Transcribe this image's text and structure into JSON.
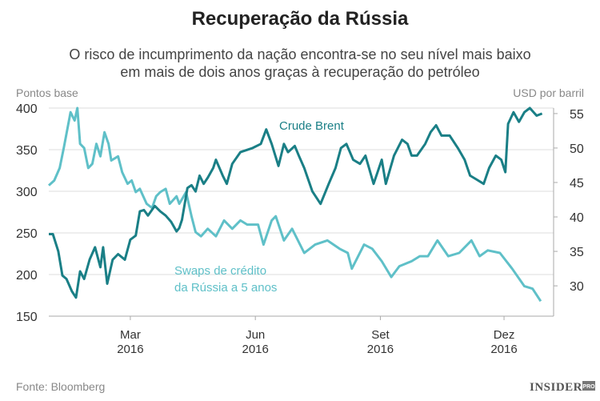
{
  "header": {
    "title": "Recuperação da Rússia",
    "subtitle_lines": [
      "O risco de incumprimento da nação encontra-se no seu nível mais baixo",
      "em mais de dois anos graças à recuperação do petróleo"
    ]
  },
  "footer": {
    "source": "Fonte: Bloomberg",
    "logo": "INSIDER PRO"
  },
  "colors": {
    "brent": "#1a7f86",
    "cds": "#5fc0c8",
    "grid": "#dddddd",
    "text": "#333333",
    "muted": "#888888"
  },
  "chart_data": {
    "type": "line",
    "title": "Recuperação da Rússia",
    "ylabel_left": "Pontos base",
    "ylabel_right": "USD por barril",
    "ylim_left": [
      150,
      400
    ],
    "ylim_right": [
      25.6,
      55.8
    ],
    "yticks_left": [
      150,
      200,
      250,
      300,
      350,
      400
    ],
    "yticks_right": [
      30,
      35,
      40,
      45,
      50,
      55
    ],
    "xlim": [
      "2016-01-01",
      "2016-12-31"
    ],
    "xticks": [
      {
        "date": "2016-03-01",
        "label": [
          "Mar",
          "2016"
        ]
      },
      {
        "date": "2016-06-01",
        "label": [
          "Jun",
          "2016"
        ]
      },
      {
        "date": "2016-09-01",
        "label": [
          "Set",
          "2016"
        ]
      },
      {
        "date": "2016-12-01",
        "label": [
          "Dez",
          "2016"
        ]
      }
    ],
    "grid": true,
    "series": [
      {
        "name": "Crude Brent",
        "axis": "right",
        "color": "#1a7f86",
        "label": [
          "Crude Brent"
        ],
        "x": [
          "2016-01-01",
          "2016-01-04",
          "2016-01-08",
          "2016-01-11",
          "2016-01-14",
          "2016-01-18",
          "2016-01-21",
          "2016-01-24",
          "2016-01-27",
          "2016-01-31",
          "2016-02-04",
          "2016-02-08",
          "2016-02-10",
          "2016-02-13",
          "2016-02-17",
          "2016-02-21",
          "2016-02-26",
          "2016-03-01",
          "2016-03-05",
          "2016-03-08",
          "2016-03-11",
          "2016-03-14",
          "2016-03-19",
          "2016-03-23",
          "2016-03-27",
          "2016-03-31",
          "2016-04-04",
          "2016-04-06",
          "2016-04-08",
          "2016-04-12",
          "2016-04-15",
          "2016-04-18",
          "2016-04-21",
          "2016-04-24",
          "2016-04-27",
          "2016-05-01",
          "2016-05-03",
          "2016-05-08",
          "2016-05-11",
          "2016-05-15",
          "2016-05-21",
          "2016-05-30",
          "2016-06-05",
          "2016-06-09",
          "2016-06-13",
          "2016-06-18",
          "2016-06-22",
          "2016-06-25",
          "2016-06-30",
          "2016-07-03",
          "2016-07-07",
          "2016-07-13",
          "2016-07-19",
          "2016-07-25",
          "2016-07-30",
          "2016-08-03",
          "2016-08-07",
          "2016-08-12",
          "2016-08-17",
          "2016-08-21",
          "2016-08-27",
          "2016-09-02",
          "2016-09-05",
          "2016-09-11",
          "2016-09-17",
          "2016-09-21",
          "2016-09-24",
          "2016-09-28",
          "2016-10-04",
          "2016-10-08",
          "2016-10-12",
          "2016-10-16",
          "2016-10-22",
          "2016-10-28",
          "2016-11-02",
          "2016-11-06",
          "2016-11-11",
          "2016-11-16",
          "2016-11-20",
          "2016-11-25",
          "2016-11-29",
          "2016-12-02",
          "2016-12-04",
          "2016-12-08",
          "2016-12-12",
          "2016-12-16",
          "2016-12-20",
          "2016-12-25",
          "2016-12-29"
        ],
        "values": [
          37.5,
          37.5,
          35,
          31.5,
          31,
          29.2,
          28.3,
          32.1,
          31,
          33.8,
          35.6,
          32.7,
          35.6,
          30.3,
          33.8,
          34.6,
          33.8,
          36.7,
          37.3,
          40.8,
          41,
          40.2,
          41.6,
          40.8,
          40.2,
          39.3,
          37.9,
          38.4,
          39.6,
          44.2,
          44.6,
          43.7,
          46,
          44.8,
          45.7,
          47.1,
          48.3,
          46,
          44.8,
          47.7,
          49.4,
          50,
          50.6,
          52.7,
          50.6,
          47.4,
          50.6,
          49.4,
          50.3,
          48.9,
          47.1,
          43.7,
          41.9,
          44.8,
          47.1,
          50,
          50.6,
          48.3,
          47.7,
          48.9,
          44.8,
          48.3,
          44.8,
          48.9,
          51.2,
          50.6,
          48.9,
          48.9,
          50.6,
          52.3,
          53.3,
          51.8,
          51.8,
          50,
          48.3,
          46,
          45.4,
          44.8,
          47.1,
          48.9,
          48.3,
          46.5,
          53.5,
          55.2,
          53.8,
          55.2,
          55.8,
          54.7,
          55
        ]
      },
      {
        "name": "Swaps de crédito da Rússia a 5 anos",
        "axis": "left",
        "color": "#5fc0c8",
        "label": [
          "Swaps de crédito",
          "da Rússia a 5 anos"
        ],
        "x": [
          "2016-01-01",
          "2016-01-05",
          "2016-01-09",
          "2016-01-12",
          "2016-01-17",
          "2016-01-20",
          "2016-01-22",
          "2016-01-24",
          "2016-01-27",
          "2016-01-30",
          "2016-02-02",
          "2016-02-05",
          "2016-02-08",
          "2016-02-11",
          "2016-02-14",
          "2016-02-16",
          "2016-02-21",
          "2016-02-24",
          "2016-02-28",
          "2016-03-02",
          "2016-03-05",
          "2016-03-08",
          "2016-03-13",
          "2016-03-17",
          "2016-03-20",
          "2016-03-23",
          "2016-03-27",
          "2016-03-30",
          "2016-04-04",
          "2016-04-06",
          "2016-04-11",
          "2016-04-15",
          "2016-04-18",
          "2016-04-22",
          "2016-04-27",
          "2016-05-03",
          "2016-05-09",
          "2016-05-15",
          "2016-05-21",
          "2016-05-26",
          "2016-06-03",
          "2016-06-07",
          "2016-06-13",
          "2016-06-16",
          "2016-06-22",
          "2016-06-28",
          "2016-07-07",
          "2016-07-15",
          "2016-07-24",
          "2016-08-02",
          "2016-08-08",
          "2016-08-11",
          "2016-08-20",
          "2016-08-26",
          "2016-09-02",
          "2016-09-09",
          "2016-09-15",
          "2016-09-24",
          "2016-09-30",
          "2016-10-06",
          "2016-10-13",
          "2016-10-21",
          "2016-10-29",
          "2016-11-07",
          "2016-11-13",
          "2016-11-19",
          "2016-11-28",
          "2016-12-07",
          "2016-12-16",
          "2016-12-22",
          "2016-12-28"
        ],
        "values": [
          307,
          313,
          328,
          352,
          395,
          385,
          400,
          357,
          352,
          328,
          333,
          357,
          342,
          371,
          357,
          337,
          342,
          323,
          309,
          313,
          299,
          303,
          285,
          280,
          294,
          299,
          303,
          285,
          294,
          285,
          299,
          270,
          251,
          246,
          255,
          246,
          265,
          255,
          265,
          260,
          260,
          236,
          265,
          270,
          241,
          255,
          226,
          236,
          241,
          231,
          226,
          207,
          236,
          231,
          216,
          197,
          210,
          216,
          222,
          222,
          241,
          222,
          226,
          241,
          222,
          229,
          226,
          207,
          186,
          183,
          168
        ]
      }
    ]
  }
}
